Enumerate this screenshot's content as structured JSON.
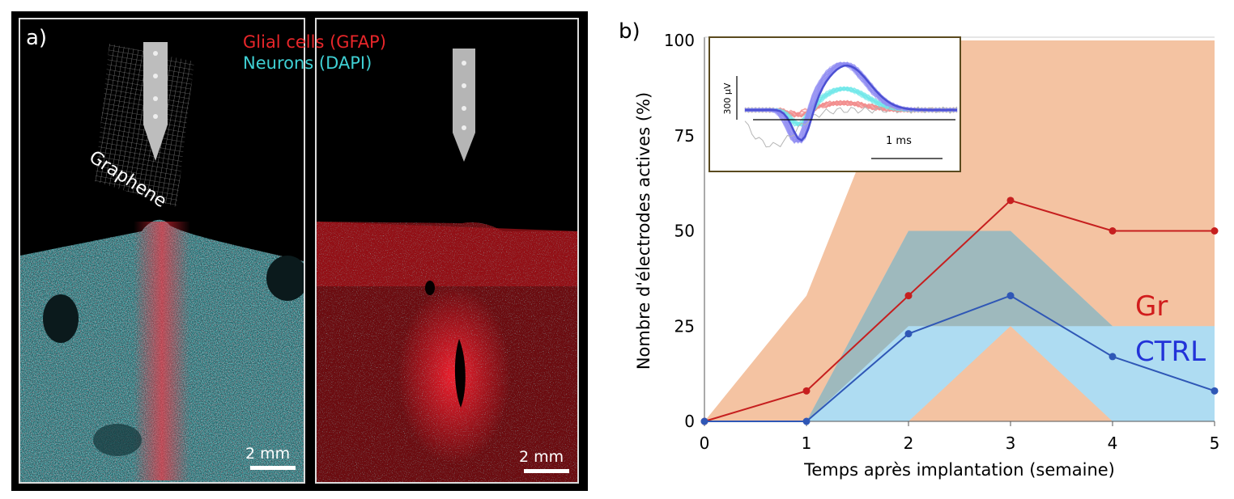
{
  "panel_a": {
    "label": "a)",
    "legend": [
      {
        "text": "Glial cells (GFAP)",
        "color": "#e8262a"
      },
      {
        "text": "Neurons (DAPI)",
        "color": "#3fd0d4"
      }
    ],
    "graphene_label": "Graphene",
    "scale_bar_left": "2 mm",
    "scale_bar_right": "2 mm"
  },
  "panel_b": {
    "label": "b)"
  },
  "chart_data": {
    "type": "line",
    "xlabel": "Temps après implantation (semaine)",
    "ylabel": "Nombre d'électrodes actives (%)",
    "x": [
      0,
      1,
      2,
      3,
      4,
      5
    ],
    "xlim": [
      0,
      5
    ],
    "ylim": [
      0,
      100
    ],
    "x_ticks": [
      "0",
      "1",
      "2",
      "3",
      "4",
      "5"
    ],
    "y_ticks": [
      "0",
      "25",
      "50",
      "75",
      "100"
    ],
    "grid": false,
    "series": [
      {
        "name": "Gr",
        "color": "#c61f1f",
        "values": [
          0,
          8,
          33,
          58,
          50,
          50
        ],
        "band_color": "#f4c3a2",
        "band_lower": [
          0,
          0,
          0,
          0,
          0,
          0
        ],
        "band_upper": [
          0,
          33,
          100,
          100,
          100,
          100
        ]
      },
      {
        "name": "CTRL",
        "color": "#2f57b6",
        "values": [
          0,
          0,
          23,
          33,
          17,
          8
        ],
        "band_color": "#aedcf2",
        "band_lower": [
          0,
          0,
          0,
          25,
          0,
          0
        ],
        "band_upper": [
          0,
          0,
          50,
          50,
          25,
          25
        ],
        "overlap_color": "#9bb3b4"
      }
    ],
    "inset": {
      "type": "line",
      "scale_bar_y": "300 µV",
      "scale_bar_x": "1 ms",
      "colors": {
        "gr": "#8f8cf2",
        "ctrl_cyan": "#6fe8ea",
        "ctrl_red": "#f28c8c",
        "outlier": "#b4b4b4",
        "mean": "#4b4fd2"
      }
    }
  }
}
